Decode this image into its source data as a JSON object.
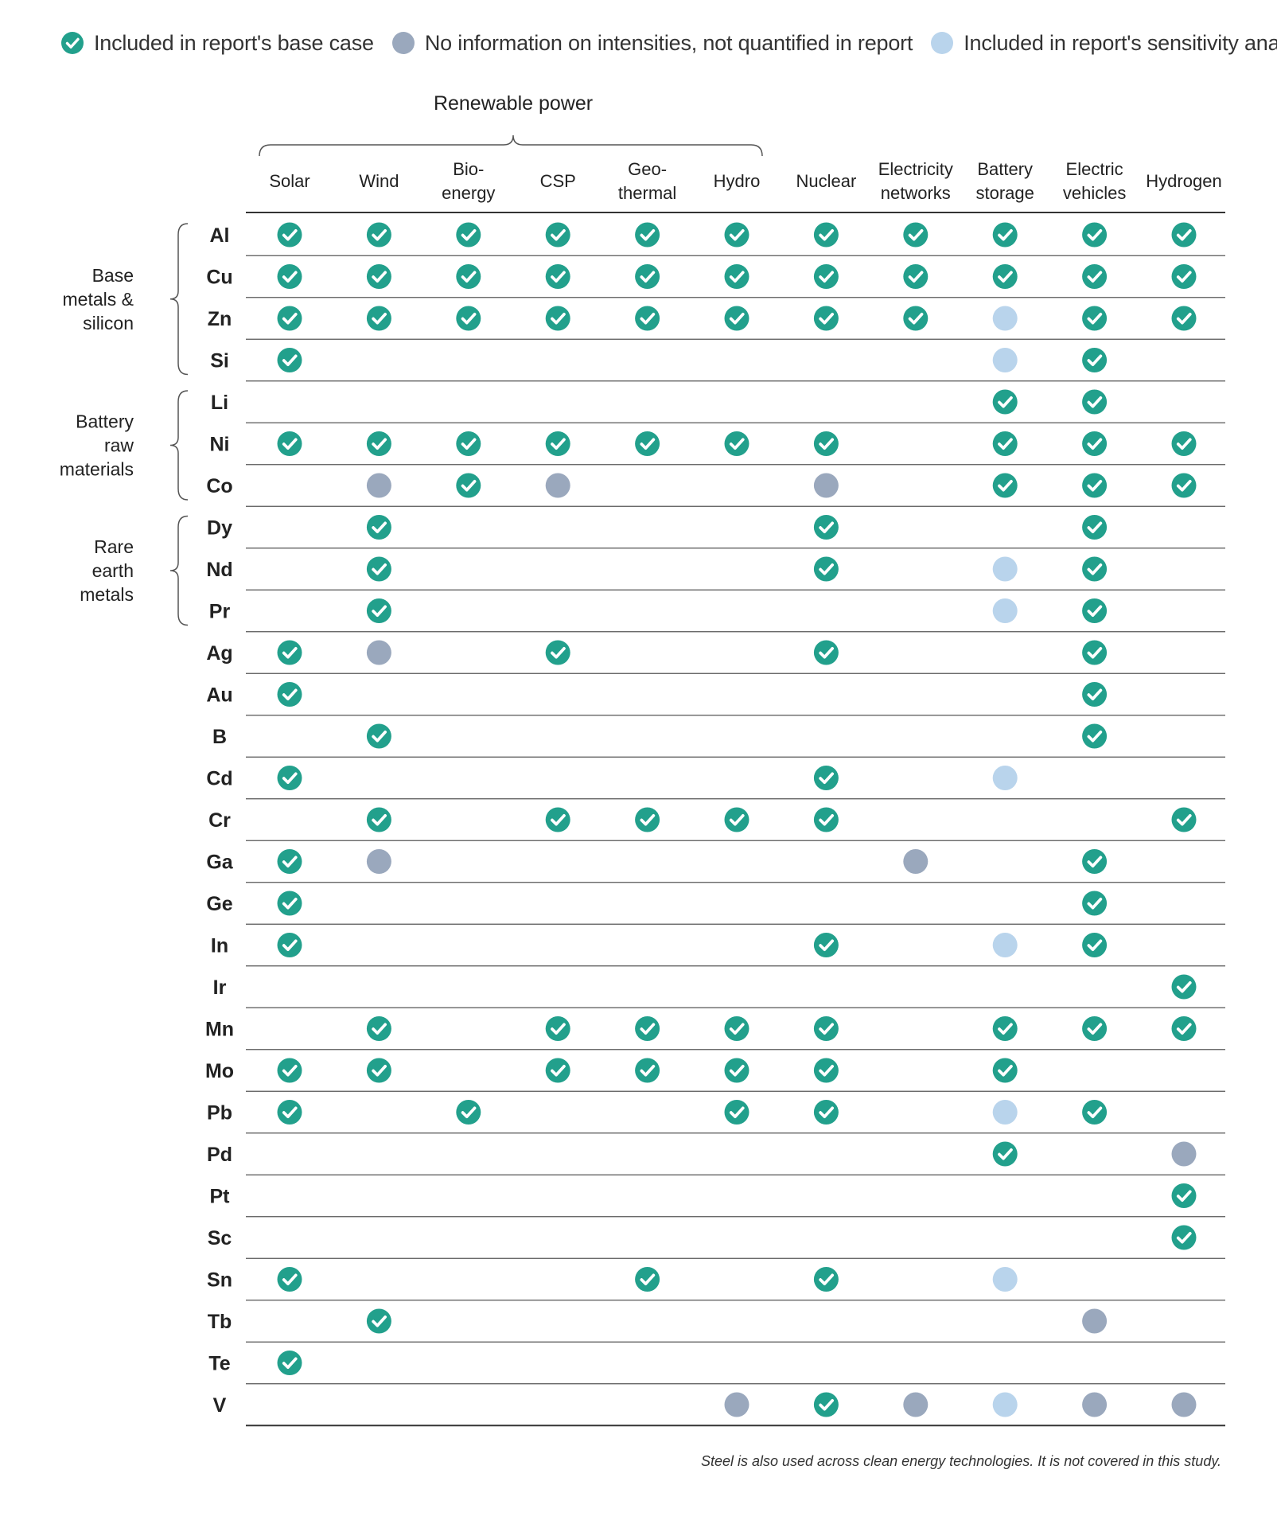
{
  "legend": [
    {
      "label": "Included in report's base case",
      "key": "base",
      "color": "#22a08c"
    },
    {
      "label": "No information on intensities, not quantified in report",
      "key": "noinfo",
      "color": "#9aa8bd"
    },
    {
      "label": "Included in report's sensitivity analysis",
      "key": "sens",
      "color": "#b9d4ec"
    }
  ],
  "group_header": "Renewable power",
  "footnote": "Steel is also used across clean energy technologies. It is not covered in this study.",
  "chart_data": {
    "type": "table",
    "columns": [
      [
        "Solar"
      ],
      [
        "Wind"
      ],
      [
        "Bio-",
        "energy"
      ],
      [
        "CSP"
      ],
      [
        "Geo-",
        "thermal"
      ],
      [
        "Hydro"
      ],
      [
        "Nuclear"
      ],
      [
        "Electricity",
        "networks"
      ],
      [
        "Battery",
        "storage"
      ],
      [
        "Electric",
        "vehicles"
      ],
      [
        "Hydrogen"
      ]
    ],
    "row_groups": [
      {
        "label": [
          "Base",
          "metals &",
          "silicon"
        ],
        "rows": [
          "Al",
          "Cu",
          "Zn",
          "Si"
        ]
      },
      {
        "label": [
          "Battery",
          "raw",
          "materials"
        ],
        "rows": [
          "Li",
          "Ni",
          "Co"
        ]
      },
      {
        "label": [
          "Rare",
          "earth",
          "metals"
        ],
        "rows": [
          "Dy",
          "Nd",
          "Pr"
        ]
      }
    ],
    "legend_codes": {
      "B": "Included in report's base case",
      "N": "No information on intensities, not quantified in report",
      "S": "Included in report's sensitivity analysis",
      "-": "not applicable"
    },
    "rows": [
      {
        "element": "Al",
        "cells": [
          "B",
          "B",
          "B",
          "B",
          "B",
          "B",
          "B",
          "B",
          "B",
          "B",
          "B"
        ]
      },
      {
        "element": "Cu",
        "cells": [
          "B",
          "B",
          "B",
          "B",
          "B",
          "B",
          "B",
          "B",
          "B",
          "B",
          "B"
        ]
      },
      {
        "element": "Zn",
        "cells": [
          "B",
          "B",
          "B",
          "B",
          "B",
          "B",
          "B",
          "B",
          "S",
          "B",
          "B"
        ]
      },
      {
        "element": "Si",
        "cells": [
          "B",
          "-",
          "-",
          "-",
          "-",
          "-",
          "-",
          "-",
          "S",
          "B",
          "-"
        ]
      },
      {
        "element": "Li",
        "cells": [
          "-",
          "-",
          "-",
          "-",
          "-",
          "-",
          "-",
          "-",
          "B",
          "B",
          "-"
        ]
      },
      {
        "element": "Ni",
        "cells": [
          "B",
          "B",
          "B",
          "B",
          "B",
          "B",
          "B",
          "-",
          "B",
          "B",
          "B"
        ]
      },
      {
        "element": "Co",
        "cells": [
          "-",
          "N",
          "B",
          "N",
          "-",
          "-",
          "N",
          "-",
          "B",
          "B",
          "B"
        ]
      },
      {
        "element": "Dy",
        "cells": [
          "-",
          "B",
          "-",
          "-",
          "-",
          "-",
          "B",
          "-",
          "-",
          "B",
          "-"
        ]
      },
      {
        "element": "Nd",
        "cells": [
          "-",
          "B",
          "-",
          "-",
          "-",
          "-",
          "B",
          "-",
          "S",
          "B",
          "-"
        ]
      },
      {
        "element": "Pr",
        "cells": [
          "-",
          "B",
          "-",
          "-",
          "-",
          "-",
          "-",
          "-",
          "S",
          "B",
          "-"
        ]
      },
      {
        "element": "Ag",
        "cells": [
          "B",
          "N",
          "-",
          "B",
          "-",
          "-",
          "B",
          "-",
          "-",
          "B",
          "-"
        ]
      },
      {
        "element": "Au",
        "cells": [
          "B",
          "-",
          "-",
          "-",
          "-",
          "-",
          "-",
          "-",
          "-",
          "B",
          "-"
        ]
      },
      {
        "element": "B",
        "cells": [
          "-",
          "B",
          "-",
          "-",
          "-",
          "-",
          "-",
          "-",
          "-",
          "B",
          "-"
        ]
      },
      {
        "element": "Cd",
        "cells": [
          "B",
          "-",
          "-",
          "-",
          "-",
          "-",
          "B",
          "-",
          "S",
          "-",
          "-"
        ]
      },
      {
        "element": "Cr",
        "cells": [
          "-",
          "B",
          "-",
          "B",
          "B",
          "B",
          "B",
          "-",
          "-",
          "-",
          "B"
        ]
      },
      {
        "element": "Ga",
        "cells": [
          "B",
          "N",
          "-",
          "-",
          "-",
          "-",
          "-",
          "N",
          "-",
          "B",
          "-"
        ]
      },
      {
        "element": "Ge",
        "cells": [
          "B",
          "-",
          "-",
          "-",
          "-",
          "-",
          "-",
          "-",
          "-",
          "B",
          "-"
        ]
      },
      {
        "element": "In",
        "cells": [
          "B",
          "-",
          "-",
          "-",
          "-",
          "-",
          "B",
          "-",
          "S",
          "B",
          "-"
        ]
      },
      {
        "element": "Ir",
        "cells": [
          "-",
          "-",
          "-",
          "-",
          "-",
          "-",
          "-",
          "-",
          "-",
          "-",
          "B"
        ]
      },
      {
        "element": "Mn",
        "cells": [
          "-",
          "B",
          "-",
          "B",
          "B",
          "B",
          "B",
          "-",
          "B",
          "B",
          "B"
        ]
      },
      {
        "element": "Mo",
        "cells": [
          "B",
          "B",
          "-",
          "B",
          "B",
          "B",
          "B",
          "-",
          "B",
          "-",
          "-"
        ]
      },
      {
        "element": "Pb",
        "cells": [
          "B",
          "-",
          "B",
          "-",
          "-",
          "B",
          "B",
          "-",
          "S",
          "B",
          "-"
        ]
      },
      {
        "element": "Pd",
        "cells": [
          "-",
          "-",
          "-",
          "-",
          "-",
          "-",
          "-",
          "-",
          "B",
          "-",
          "N"
        ]
      },
      {
        "element": "Pt",
        "cells": [
          "-",
          "-",
          "-",
          "-",
          "-",
          "-",
          "-",
          "-",
          "-",
          "-",
          "B"
        ]
      },
      {
        "element": "Sc",
        "cells": [
          "-",
          "-",
          "-",
          "-",
          "-",
          "-",
          "-",
          "-",
          "-",
          "-",
          "B"
        ]
      },
      {
        "element": "Sn",
        "cells": [
          "B",
          "-",
          "-",
          "-",
          "B",
          "-",
          "B",
          "-",
          "S",
          "-",
          "-"
        ]
      },
      {
        "element": "Tb",
        "cells": [
          "-",
          "B",
          "-",
          "-",
          "-",
          "-",
          "-",
          "-",
          "-",
          "N",
          "-"
        ]
      },
      {
        "element": "Te",
        "cells": [
          "B",
          "-",
          "-",
          "-",
          "-",
          "-",
          "-",
          "-",
          "-",
          "-",
          "-"
        ]
      },
      {
        "element": "V",
        "cells": [
          "-",
          "-",
          "-",
          "-",
          "-",
          "N",
          "B",
          "N",
          "S",
          "N",
          "N"
        ]
      }
    ]
  }
}
